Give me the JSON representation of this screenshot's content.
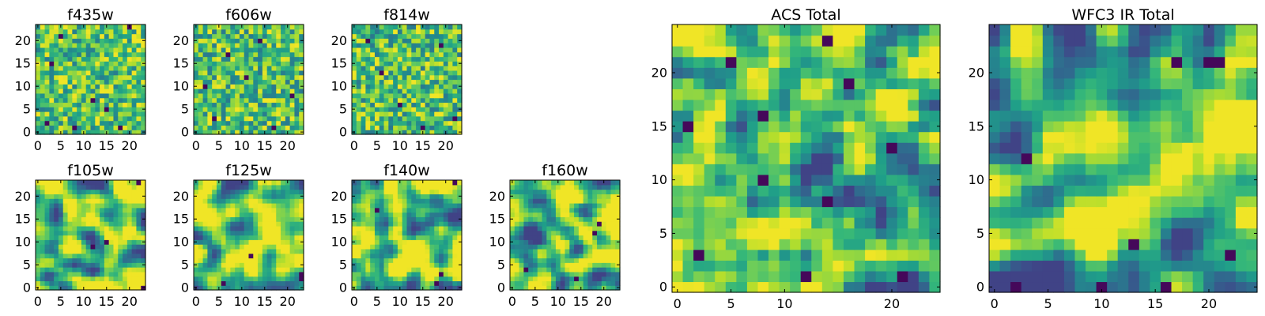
{
  "figure": {
    "colormap": "viridis",
    "background": "#ffffff",
    "frame_color": "#000000"
  },
  "chart_data": [
    {
      "type": "heatmap",
      "title": "f435w",
      "size": 24,
      "xticks": [
        0,
        5,
        10,
        15,
        20
      ],
      "yticks": [
        0,
        5,
        10,
        15,
        20
      ],
      "seed": 11,
      "smooth": 0,
      "mean": 0.72,
      "spread": 0.17,
      "dark_cells": [
        [
          2,
          2
        ],
        [
          8,
          1
        ],
        [
          12,
          7
        ],
        [
          20,
          23
        ],
        [
          5,
          21
        ],
        [
          15,
          5
        ],
        [
          3,
          15
        ],
        [
          18,
          1
        ]
      ]
    },
    {
      "type": "heatmap",
      "title": "f606w",
      "size": 24,
      "xticks": [
        0,
        5,
        10,
        15,
        20
      ],
      "yticks": [
        0,
        5,
        10,
        15,
        20
      ],
      "seed": 23,
      "smooth": 0,
      "mean": 0.7,
      "spread": 0.18,
      "dark_cells": [
        [
          4,
          3
        ],
        [
          11,
          12
        ],
        [
          14,
          20
        ],
        [
          21,
          8
        ],
        [
          7,
          17
        ],
        [
          17,
          1
        ],
        [
          2,
          10
        ]
      ]
    },
    {
      "type": "heatmap",
      "title": "f814w",
      "size": 24,
      "xticks": [
        0,
        5,
        10,
        15,
        20
      ],
      "yticks": [
        0,
        5,
        10,
        15,
        20
      ],
      "seed": 37,
      "smooth": 0,
      "mean": 0.7,
      "spread": 0.18,
      "dark_cells": [
        [
          15,
          1
        ],
        [
          6,
          13
        ],
        [
          19,
          19
        ],
        [
          10,
          6
        ],
        [
          3,
          20
        ],
        [
          22,
          3
        ]
      ]
    },
    {
      "type": "heatmap",
      "title": "f105w",
      "size": 24,
      "xticks": [
        0,
        5,
        10,
        15,
        20
      ],
      "yticks": [
        0,
        5,
        10,
        15,
        20
      ],
      "seed": 41,
      "smooth": 2,
      "mean": 0.74,
      "spread": 0.28,
      "dark_cells": [
        [
          15,
          10
        ],
        [
          22,
          23
        ],
        [
          23,
          0
        ],
        [
          12,
          9
        ]
      ]
    },
    {
      "type": "heatmap",
      "title": "f125w",
      "size": 24,
      "xticks": [
        0,
        5,
        10,
        15,
        20
      ],
      "yticks": [
        0,
        5,
        10,
        15,
        20
      ],
      "seed": 53,
      "smooth": 2,
      "mean": 0.76,
      "spread": 0.27,
      "dark_cells": [
        [
          12,
          7
        ],
        [
          23,
          2
        ],
        [
          23,
          3
        ],
        [
          6,
          1
        ]
      ]
    },
    {
      "type": "heatmap",
      "title": "f140w",
      "size": 24,
      "xticks": [
        0,
        5,
        10,
        15,
        20
      ],
      "yticks": [
        0,
        5,
        10,
        15,
        20
      ],
      "seed": 67,
      "smooth": 2,
      "mean": 0.74,
      "spread": 0.28,
      "dark_cells": [
        [
          5,
          17
        ],
        [
          18,
          1
        ],
        [
          22,
          23
        ],
        [
          19,
          3
        ]
      ]
    },
    {
      "type": "heatmap",
      "title": "f160w",
      "size": 24,
      "xticks": [
        0,
        5,
        10,
        15,
        20
      ],
      "yticks": [
        0,
        5,
        10,
        15,
        20
      ],
      "seed": 71,
      "smooth": 2,
      "mean": 0.72,
      "spread": 0.28,
      "dark_cells": [
        [
          19,
          14
        ],
        [
          3,
          4
        ],
        [
          18,
          12
        ],
        [
          14,
          2
        ]
      ]
    },
    {
      "type": "heatmap",
      "title": "ACS Total",
      "size": 25,
      "xticks": [
        0,
        5,
        10,
        20
      ],
      "yticks": [
        0,
        5,
        10,
        15,
        20
      ],
      "seed": 83,
      "smooth": 1,
      "mean": 0.7,
      "spread": 0.22,
      "dark_cells": [
        [
          14,
          23
        ],
        [
          16,
          19
        ],
        [
          8,
          16
        ],
        [
          1,
          15
        ],
        [
          20,
          13
        ],
        [
          8,
          10
        ],
        [
          14,
          8
        ],
        [
          2,
          3
        ],
        [
          12,
          1
        ],
        [
          5,
          21
        ],
        [
          21,
          1
        ]
      ]
    },
    {
      "type": "heatmap",
      "title": "WFC3 IR Total",
      "size": 25,
      "xticks": [
        0,
        5,
        10,
        15,
        20
      ],
      "yticks": [
        0,
        5,
        10,
        15,
        20
      ],
      "seed": 97,
      "smooth": 2,
      "mean": 0.66,
      "spread": 0.3,
      "dark_cells": [
        [
          20,
          21
        ],
        [
          21,
          21
        ],
        [
          17,
          21
        ],
        [
          3,
          12
        ],
        [
          13,
          4
        ],
        [
          2,
          0
        ],
        [
          10,
          0
        ],
        [
          16,
          0
        ],
        [
          22,
          3
        ]
      ]
    }
  ]
}
